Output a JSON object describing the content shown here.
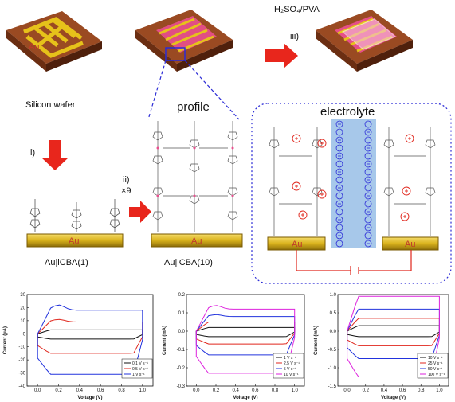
{
  "labels": {
    "silicon_wafer": "Silicon wafer",
    "au": "Au",
    "profile": "profile",
    "electrolyte_agent": "H₂SO₄/PVA",
    "electrolyte": "electrolyte",
    "step_i": "i)",
    "step_ii": "ii)",
    "step_ii_times": "×9",
    "step_iii": "iii)",
    "au_icba_1": "Au|iCBA(1)",
    "au_icba_10": "Au|iCBA(10)"
  },
  "colors": {
    "wafer": "#7a3b1c",
    "gold": "#e6c21a",
    "pink": "#e94f8e",
    "arrow": "#e8261c",
    "electrolyte_blue": "#a7c8ea",
    "dash_blue": "#2b2bd6"
  },
  "chart_data": [
    {
      "type": "line",
      "xlabel": "Voltage (V)",
      "ylabel": "Current (µA)",
      "xlim": [
        -0.1,
        1.1
      ],
      "ylim": [
        -40,
        30
      ],
      "xticks": [
        "0.0",
        "0.2",
        "0.4",
        "0.6",
        "0.8",
        "1.0"
      ],
      "yticks": [
        "30",
        "20",
        "10",
        "0",
        "-10",
        "-20",
        "-30",
        "-40"
      ],
      "series": [
        {
          "name": "0.1 V s⁻¹",
          "color": "#111111",
          "upper": 3,
          "lower": -4,
          "peak": 3
        },
        {
          "name": "0.5 V s⁻¹",
          "color": "#e0261c",
          "upper": 9,
          "lower": -15,
          "peak": 11
        },
        {
          "name": "1 V s⁻¹",
          "color": "#2233dd",
          "upper": 18,
          "lower": -31,
          "peak": 22
        }
      ]
    },
    {
      "type": "line",
      "xlabel": "Voltage (V)",
      "ylabel": "Current (mA)",
      "xlim": [
        -0.1,
        1.1
      ],
      "ylim": [
        -0.3,
        0.2
      ],
      "xticks": [
        "0.0",
        "0.2",
        "0.4",
        "0.6",
        "0.8",
        "1.0"
      ],
      "yticks": [
        "0.2",
        "0.1",
        "0.0",
        "-0.1",
        "-0.2",
        "-0.3"
      ],
      "series": [
        {
          "name": "1 V s⁻¹",
          "color": "#111111",
          "upper": 0.02,
          "lower": -0.03,
          "peak": 0.02
        },
        {
          "name": "2.5 V s⁻¹",
          "color": "#e0261c",
          "upper": 0.05,
          "lower": -0.07,
          "peak": 0.05
        },
        {
          "name": "5 V s⁻¹",
          "color": "#2233dd",
          "upper": 0.08,
          "lower": -0.13,
          "peak": 0.09
        },
        {
          "name": "10 V s⁻¹",
          "color": "#dd22dd",
          "upper": 0.12,
          "lower": -0.23,
          "peak": 0.14
        }
      ]
    },
    {
      "type": "line",
      "xlabel": "Voltage (V)",
      "ylabel": "Current (mA)",
      "xlim": [
        -0.1,
        1.1
      ],
      "ylim": [
        -1.5,
        1.0
      ],
      "xticks": [
        "0.0",
        "0.2",
        "0.4",
        "0.6",
        "0.8",
        "1.0"
      ],
      "yticks": [
        "1.0",
        "0.5",
        "0.0",
        "-0.5",
        "-1.0",
        "-1.5"
      ],
      "series": [
        {
          "name": "10 V s⁻¹",
          "color": "#111111",
          "upper": 0.15,
          "lower": -0.15,
          "peak": 0.15
        },
        {
          "name": "25 V s⁻¹",
          "color": "#e0261c",
          "upper": 0.35,
          "lower": -0.4,
          "peak": 0.35
        },
        {
          "name": "50 V s⁻¹",
          "color": "#2233dd",
          "upper": 0.6,
          "lower": -0.75,
          "peak": 0.6
        },
        {
          "name": "100 V s⁻¹",
          "color": "#dd22dd",
          "upper": 0.95,
          "lower": -1.25,
          "peak": 0.95
        }
      ]
    }
  ]
}
